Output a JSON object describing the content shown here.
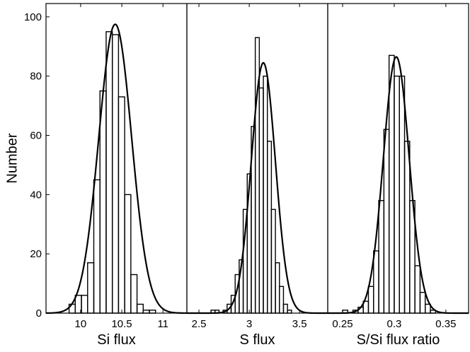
{
  "chart_data": [
    {
      "type": "histogram",
      "xlabel": "Si flux",
      "ylabel": "Number",
      "bins": [
        9.86,
        9.935,
        10.01,
        10.085,
        10.16,
        10.235,
        10.31,
        10.385,
        10.46,
        10.535,
        10.61,
        10.685,
        10.76,
        10.835,
        10.91
      ],
      "values": [
        3,
        6,
        6,
        17,
        45,
        75,
        95,
        94,
        73,
        40,
        13,
        3,
        1,
        1
      ],
      "fit": {
        "peak": 97.5,
        "mean": 10.42,
        "sigma": 0.2
      },
      "xlim": [
        9.58,
        11.29
      ],
      "xticks": [
        10,
        10.5,
        11
      ],
      "ylim": [
        0,
        104.5
      ],
      "yticks": [
        0,
        20,
        40,
        60,
        80,
        100
      ]
    },
    {
      "type": "histogram",
      "xlabel": "S flux",
      "bins": [
        2.62,
        2.66,
        2.7,
        2.74,
        2.78,
        2.82,
        2.86,
        2.9,
        2.94,
        2.98,
        3.02,
        3.06,
        3.1,
        3.14,
        3.18,
        3.22,
        3.26,
        3.3,
        3.34,
        3.38,
        3.42
      ],
      "values": [
        1,
        1,
        0,
        1,
        3,
        6,
        13,
        18,
        35,
        47,
        63,
        93,
        76,
        80,
        58,
        35,
        17,
        9,
        3,
        1
      ],
      "fit": {
        "peak": 84.5,
        "mean": 3.14,
        "sigma": 0.12
      },
      "xlim": [
        2.38,
        3.78
      ],
      "xticks": [
        2.5,
        3,
        3.5
      ],
      "ylim": [
        0,
        104.5
      ]
    },
    {
      "type": "histogram",
      "xlabel": "S/Si flux ratio",
      "bins": [
        0.25,
        0.255,
        0.26,
        0.265,
        0.27,
        0.275,
        0.28,
        0.285,
        0.29,
        0.295,
        0.3,
        0.305,
        0.31,
        0.315,
        0.32,
        0.325,
        0.33,
        0.335,
        0.34
      ],
      "values": [
        1,
        0,
        1,
        2,
        4,
        9,
        21,
        38,
        62,
        87,
        80,
        80,
        58,
        38,
        16,
        7,
        3,
        1
      ],
      "fit": {
        "peak": 86.5,
        "mean": 0.302,
        "sigma": 0.0125
      },
      "xlim": [
        0.2356,
        0.372
      ],
      "xticks": [
        0.25,
        0.3,
        0.35
      ],
      "ylim": [
        0,
        104.5
      ]
    }
  ]
}
